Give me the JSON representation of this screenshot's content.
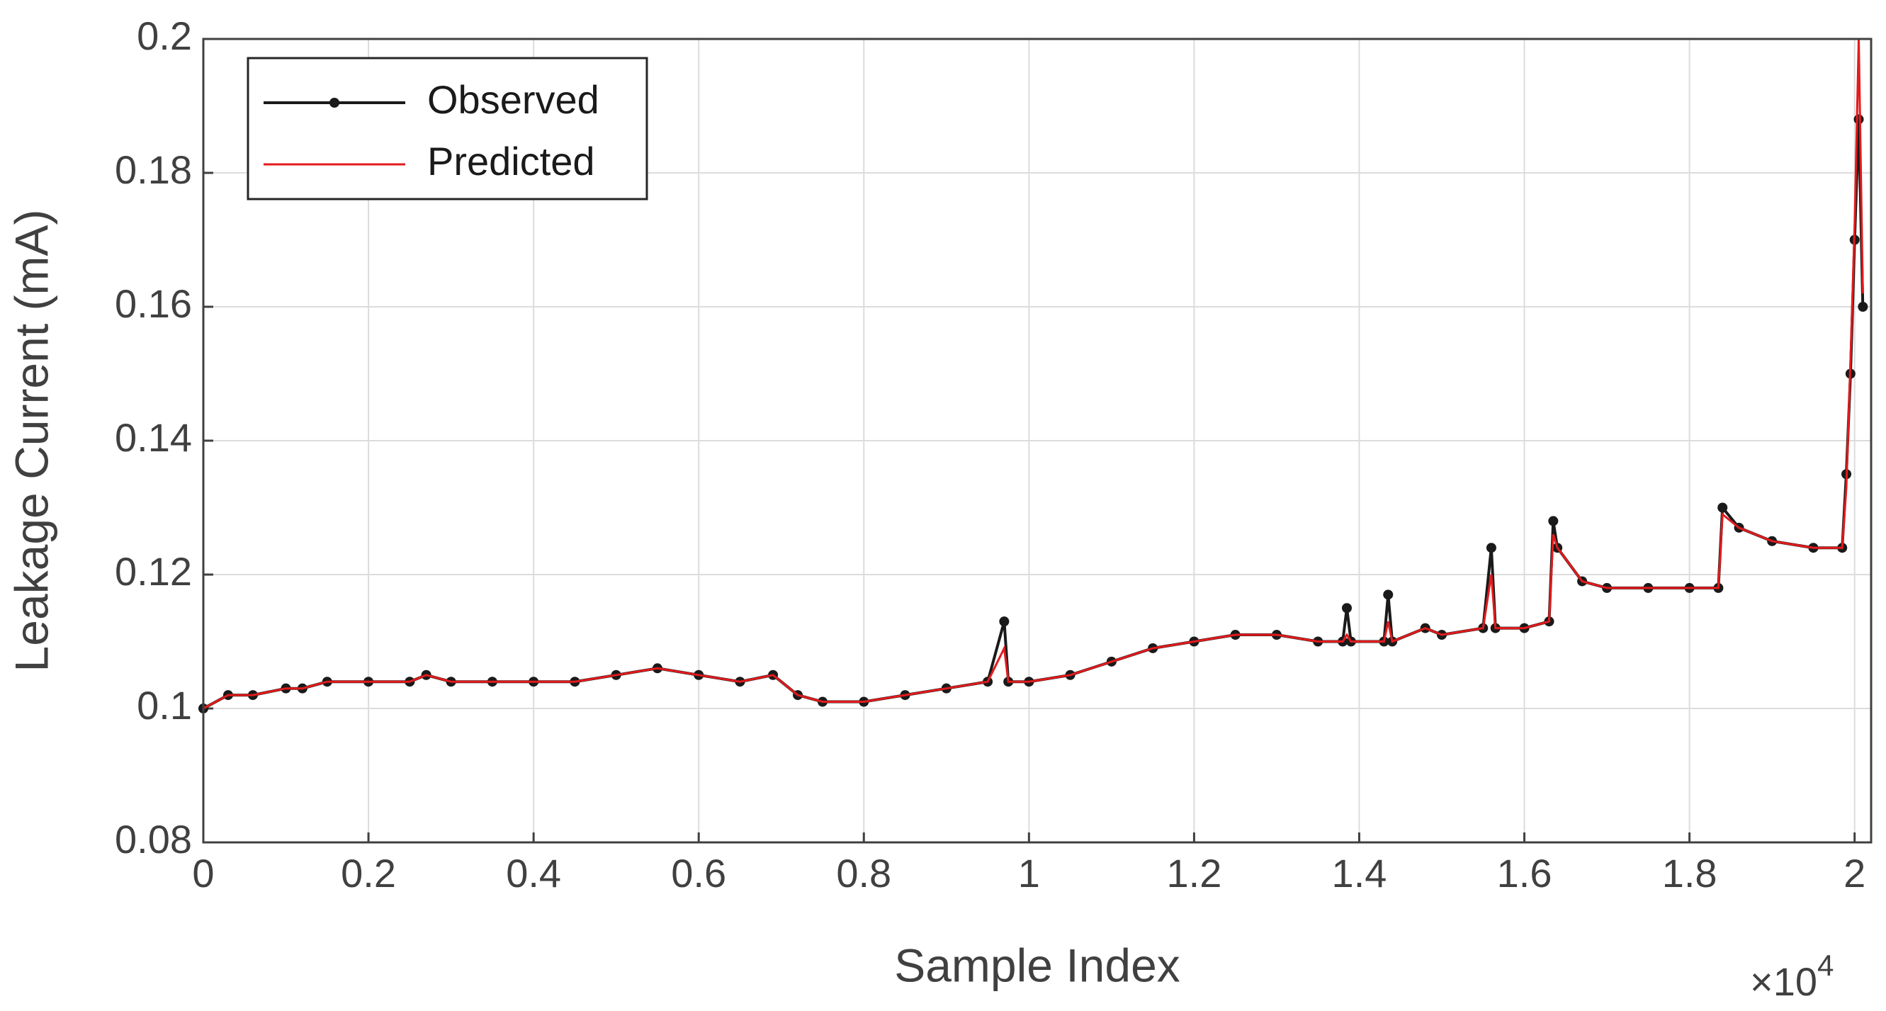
{
  "chart_data": {
    "type": "line",
    "xlabel": "Sample Index",
    "ylabel": "Leakage Current (mA)",
    "x_multiplier": {
      "base": "×10",
      "exponent": "4"
    },
    "x": [
      0,
      300,
      600,
      1000,
      1200,
      1500,
      2000,
      2500,
      2700,
      3000,
      3500,
      4000,
      4500,
      5000,
      5500,
      6000,
      6500,
      6900,
      7200,
      7500,
      8000,
      8500,
      9000,
      9500,
      9700,
      9750,
      10000,
      10500,
      11000,
      11500,
      12000,
      12500,
      13000,
      13500,
      13800,
      13850,
      13900,
      14300,
      14350,
      14400,
      14800,
      15000,
      15500,
      15600,
      15650,
      16000,
      16300,
      16350,
      16400,
      16700,
      17000,
      17500,
      18000,
      18350,
      18400,
      18600,
      19000,
      19500,
      19850,
      19900,
      19950,
      20000,
      20050,
      20100
    ],
    "series": [
      {
        "name": "Observed",
        "color": "#1a1a1a",
        "markers": true,
        "values": [
          0.1,
          0.102,
          0.102,
          0.103,
          0.103,
          0.104,
          0.104,
          0.104,
          0.105,
          0.104,
          0.104,
          0.104,
          0.104,
          0.105,
          0.106,
          0.105,
          0.104,
          0.105,
          0.102,
          0.101,
          0.101,
          0.102,
          0.103,
          0.104,
          0.113,
          0.104,
          0.104,
          0.105,
          0.107,
          0.109,
          0.11,
          0.111,
          0.111,
          0.11,
          0.11,
          0.115,
          0.11,
          0.11,
          0.117,
          0.11,
          0.112,
          0.111,
          0.112,
          0.124,
          0.112,
          0.112,
          0.113,
          0.128,
          0.124,
          0.119,
          0.118,
          0.118,
          0.118,
          0.118,
          0.13,
          0.127,
          0.125,
          0.124,
          0.124,
          0.135,
          0.15,
          0.17,
          0.188,
          0.16
        ]
      },
      {
        "name": "Predicted",
        "color": "#e31a1c",
        "markers": false,
        "values": [
          0.1,
          0.102,
          0.102,
          0.103,
          0.103,
          0.104,
          0.104,
          0.104,
          0.105,
          0.104,
          0.104,
          0.104,
          0.104,
          0.105,
          0.106,
          0.105,
          0.104,
          0.105,
          0.102,
          0.101,
          0.101,
          0.102,
          0.103,
          0.104,
          0.109,
          0.104,
          0.104,
          0.105,
          0.107,
          0.109,
          0.11,
          0.111,
          0.111,
          0.11,
          0.11,
          0.111,
          0.11,
          0.11,
          0.113,
          0.11,
          0.112,
          0.111,
          0.112,
          0.12,
          0.112,
          0.112,
          0.113,
          0.126,
          0.124,
          0.119,
          0.118,
          0.118,
          0.118,
          0.118,
          0.129,
          0.127,
          0.125,
          0.124,
          0.124,
          0.133,
          0.152,
          0.172,
          0.2,
          0.162
        ]
      }
    ],
    "xlim": [
      0,
      20200
    ],
    "ylim": [
      0.08,
      0.2
    ],
    "xticks": [
      0,
      {
        "value": 2000,
        "label": "0.2"
      },
      {
        "value": 4000,
        "label": "0.4"
      },
      {
        "value": 6000,
        "label": "0.6"
      },
      {
        "value": 8000,
        "label": "0.8"
      },
      {
        "value": 10000,
        "label": "1"
      },
      {
        "value": 12000,
        "label": "1.2"
      },
      {
        "value": 14000,
        "label": "1.4"
      },
      {
        "value": 16000,
        "label": "1.6"
      },
      {
        "value": 18000,
        "label": "1.8"
      },
      {
        "value": 20000,
        "label": "2"
      }
    ],
    "yticks": [
      0.08,
      0.1,
      0.12,
      0.14,
      0.16,
      0.18,
      0.2
    ],
    "grid": true,
    "legend": "upper left"
  }
}
